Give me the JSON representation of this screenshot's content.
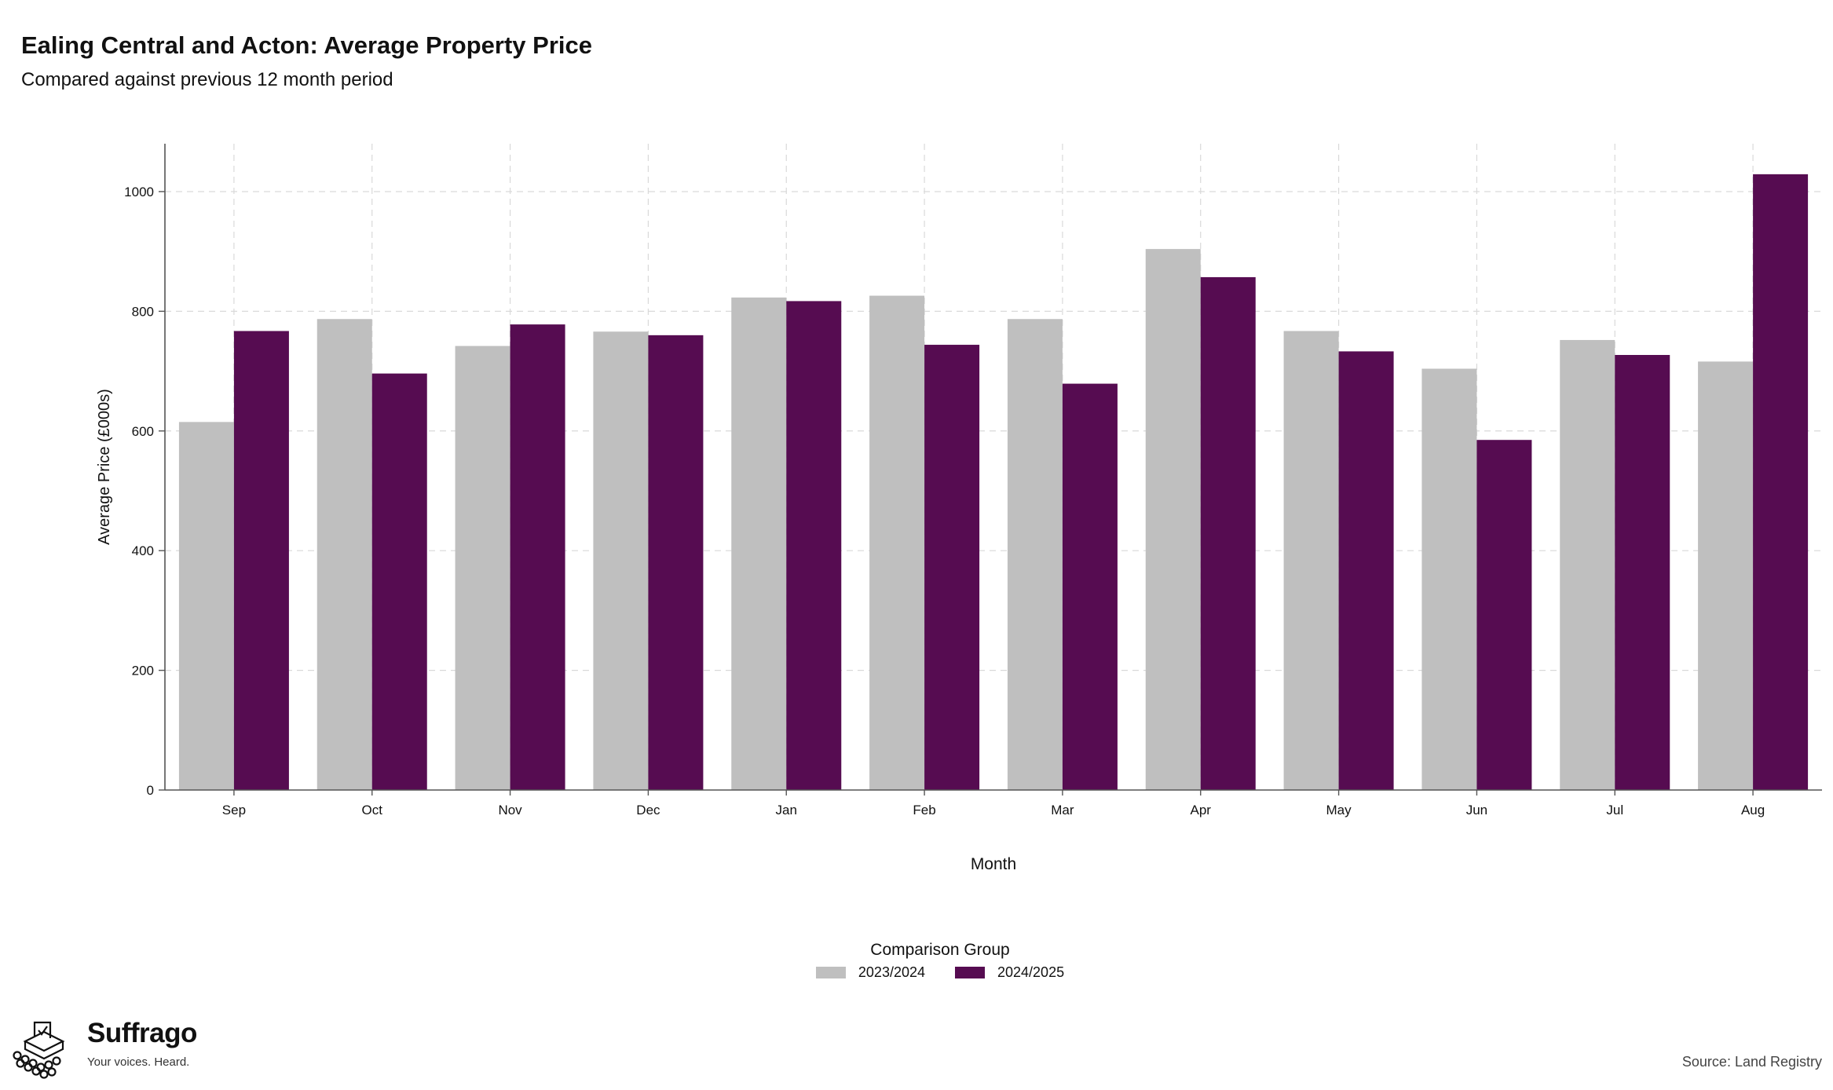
{
  "title": "Ealing Central and Acton: Average Property Price",
  "subtitle": "Compared against previous 12 month period",
  "source": "Source: Land Registry",
  "logo": {
    "name": "Suffrago",
    "tagline": "Your voices. Heard.",
    "icon": "ballot-box-icon"
  },
  "legend": {
    "title": "Comparison Group"
  },
  "colors": {
    "series_2023_2024": "#bfbfbf",
    "series_2024_2025": "#560c51",
    "grid": "#d9d9d9",
    "axis": "#555555"
  },
  "chart_data": {
    "type": "bar",
    "title": "Ealing Central and Acton: Average Property Price",
    "subtitle": "Compared against previous 12 month period",
    "xlabel": "Month",
    "ylabel": "Average Price (£000s)",
    "ylim": [
      0,
      1080
    ],
    "yticks": [
      0,
      200,
      400,
      600,
      800,
      1000
    ],
    "grid": true,
    "legend_placement": "bottom",
    "categories": [
      "Sep",
      "Oct",
      "Nov",
      "Dec",
      "Jan",
      "Feb",
      "Mar",
      "Apr",
      "May",
      "Jun",
      "Jul",
      "Aug"
    ],
    "series": [
      {
        "name": "2023/2024",
        "color": "#bfbfbf",
        "values": [
          615,
          787,
          742,
          766,
          823,
          826,
          787,
          904,
          767,
          704,
          752,
          716
        ]
      },
      {
        "name": "2024/2025",
        "color": "#560c51",
        "values": [
          767,
          696,
          778,
          760,
          817,
          744,
          679,
          857,
          733,
          585,
          727,
          1029
        ]
      }
    ]
  }
}
